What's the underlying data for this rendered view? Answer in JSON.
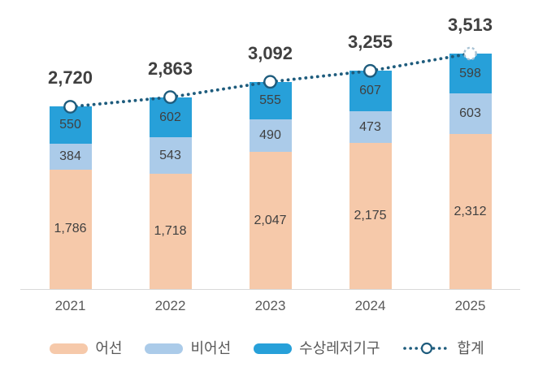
{
  "chart_data": {
    "type": "bar",
    "variant": "stacked-column-with-total-line",
    "title": "",
    "categories": [
      "2021",
      "2022",
      "2023",
      "2024",
      "2025"
    ],
    "series": [
      {
        "name": "어선",
        "color": "#F6C9AA",
        "values": [
          1786,
          1718,
          2047,
          2175,
          2312
        ]
      },
      {
        "name": "비어선",
        "color": "#ABCBE9",
        "values": [
          384,
          543,
          490,
          473,
          603
        ]
      },
      {
        "name": "수상레저기구",
        "color": "#27A0D9",
        "values": [
          550,
          602,
          555,
          607,
          598
        ]
      }
    ],
    "total_line": {
      "name": "합계",
      "values": [
        2720,
        2863,
        3092,
        3255,
        3513
      ],
      "color": "#1E5C7D",
      "marker": "open-circle",
      "last_marker_style": "dashed-outline"
    },
    "legend_entries": [
      "어선",
      "비어선",
      "수상레저기구",
      "합계"
    ],
    "legend_position": "bottom",
    "grid": false,
    "ylim": [
      0,
      3700
    ],
    "colors": {
      "total_label": "#404040",
      "segment_label": "#404040",
      "axis_label": "#595959",
      "axis_line": "#D9D9D9",
      "legend_label": "#595959",
      "marker_fill": "#FFFFFF",
      "last_marker_stroke": "#A8C2D4"
    }
  }
}
